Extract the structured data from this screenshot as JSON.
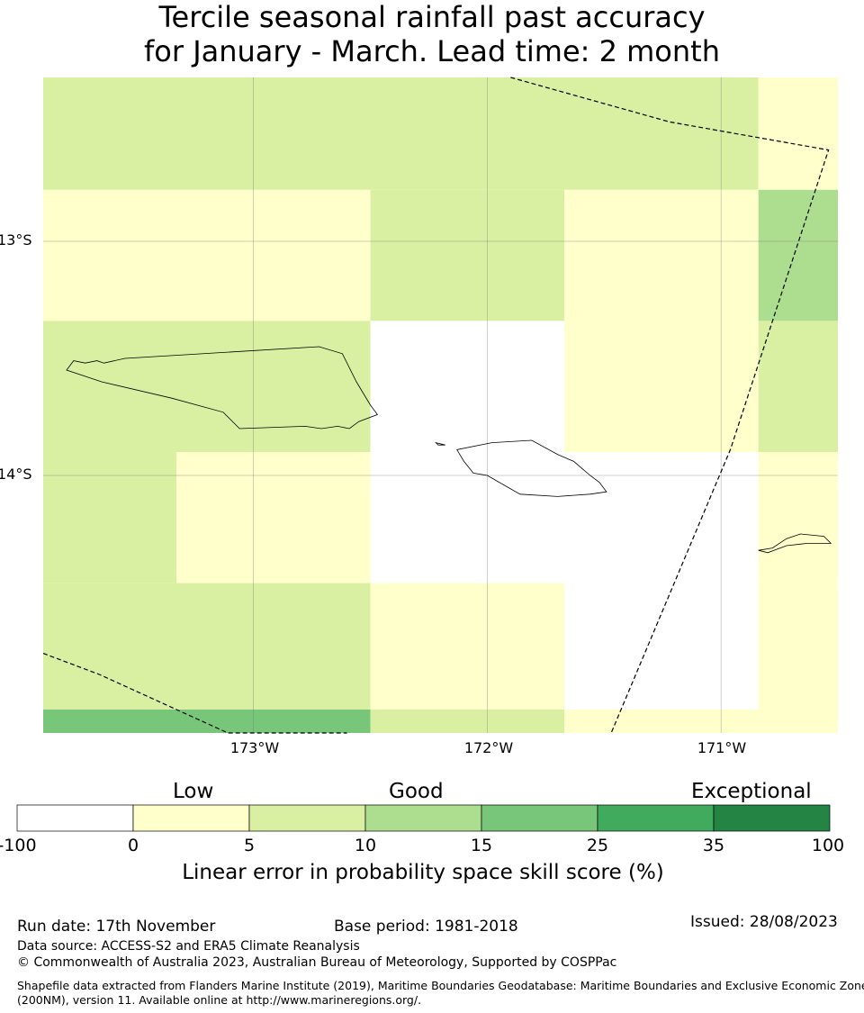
{
  "title": {
    "line1": "Tercile seasonal rainfall past accuracy",
    "line2": "for January - March. Lead time: 2 month"
  },
  "map": {
    "lat_labels": [
      "13°S",
      "14°S"
    ],
    "lon_labels": [
      "173°W",
      "172°W",
      "171°W"
    ],
    "extent": {
      "lon_min": -173.9,
      "lon_max": -170.5,
      "lat_min": -15.1,
      "lat_max": -12.3
    },
    "grid_cells": [
      {
        "lon0": -173.9,
        "lon1": -170.84,
        "lat0": -12.78,
        "lat1": -12.3,
        "bin": 2
      },
      {
        "lon0": -170.84,
        "lon1": -170.5,
        "lat0": -12.78,
        "lat1": -12.3,
        "bin": 1
      },
      {
        "lon0": -173.9,
        "lon1": -172.5,
        "lat0": -13.34,
        "lat1": -12.78,
        "bin": 1
      },
      {
        "lon0": -172.5,
        "lon1": -171.67,
        "lat0": -13.34,
        "lat1": -12.78,
        "bin": 2
      },
      {
        "lon0": -171.67,
        "lon1": -170.84,
        "lat0": -13.34,
        "lat1": -12.78,
        "bin": 1
      },
      {
        "lon0": -170.84,
        "lon1": -170.5,
        "lat0": -13.34,
        "lat1": -12.78,
        "bin": 3
      },
      {
        "lon0": -173.9,
        "lon1": -172.5,
        "lat0": -13.9,
        "lat1": -13.34,
        "bin": 2
      },
      {
        "lon0": -172.5,
        "lon1": -171.67,
        "lat0": -13.9,
        "lat1": -13.34,
        "bin": 0
      },
      {
        "lon0": -171.67,
        "lon1": -170.84,
        "lat0": -13.9,
        "lat1": -13.34,
        "bin": 1
      },
      {
        "lon0": -170.84,
        "lon1": -170.5,
        "lat0": -13.9,
        "lat1": -13.34,
        "bin": 2
      },
      {
        "lon0": -173.9,
        "lon1": -173.33,
        "lat0": -14.46,
        "lat1": -13.9,
        "bin": 2
      },
      {
        "lon0": -173.33,
        "lon1": -172.5,
        "lat0": -14.46,
        "lat1": -13.9,
        "bin": 1
      },
      {
        "lon0": -172.5,
        "lon1": -170.84,
        "lat0": -14.46,
        "lat1": -13.9,
        "bin": 0
      },
      {
        "lon0": -170.84,
        "lon1": -170.5,
        "lat0": -14.46,
        "lat1": -13.9,
        "bin": 1
      },
      {
        "lon0": -173.9,
        "lon1": -172.5,
        "lat0": -15.0,
        "lat1": -14.46,
        "bin": 2
      },
      {
        "lon0": -172.5,
        "lon1": -171.67,
        "lat0": -15.0,
        "lat1": -14.46,
        "bin": 1
      },
      {
        "lon0": -171.67,
        "lon1": -170.84,
        "lat0": -15.0,
        "lat1": -14.46,
        "bin": 0
      },
      {
        "lon0": -170.84,
        "lon1": -170.5,
        "lat0": -15.0,
        "lat1": -14.46,
        "bin": 1
      },
      {
        "lon0": -173.9,
        "lon1": -172.5,
        "lat0": -15.1,
        "lat1": -15.0,
        "bin": 4
      },
      {
        "lon0": -172.5,
        "lon1": -171.67,
        "lat0": -15.1,
        "lat1": -15.0,
        "bin": 2
      },
      {
        "lon0": -171.67,
        "lon1": -170.5,
        "lat0": -15.1,
        "lat1": -15.0,
        "bin": 1
      }
    ],
    "eez_boundaries": [
      [
        [
          -171.9,
          -12.3
        ],
        [
          -171.22,
          -12.49
        ],
        [
          -170.54,
          -12.61
        ],
        [
          -170.96,
          -13.89
        ],
        [
          -171.47,
          -15.1
        ]
      ],
      [
        [
          -173.9,
          -14.76
        ],
        [
          -173.66,
          -14.85
        ],
        [
          -173.11,
          -15.1
        ],
        [
          -172.6,
          -15.1
        ]
      ]
    ],
    "islands": [
      {
        "name": "Savai'i",
        "outline": [
          [
            -173.8,
            -13.55
          ],
          [
            -173.77,
            -13.51
          ],
          [
            -173.72,
            -13.52
          ],
          [
            -173.67,
            -13.51
          ],
          [
            -173.64,
            -13.52
          ],
          [
            -173.55,
            -13.5
          ],
          [
            -172.72,
            -13.45
          ],
          [
            -172.62,
            -13.48
          ],
          [
            -172.56,
            -13.6
          ],
          [
            -172.53,
            -13.65
          ],
          [
            -172.5,
            -13.7
          ],
          [
            -172.47,
            -13.74
          ],
          [
            -172.55,
            -13.77
          ],
          [
            -172.59,
            -13.8
          ],
          [
            -172.64,
            -13.79
          ],
          [
            -172.71,
            -13.8
          ],
          [
            -172.78,
            -13.79
          ],
          [
            -173.06,
            -13.8
          ],
          [
            -173.13,
            -13.73
          ],
          [
            -173.35,
            -13.67
          ],
          [
            -173.65,
            -13.6
          ],
          [
            -173.8,
            -13.55
          ]
        ]
      },
      {
        "name": "Apolima",
        "outline": [
          [
            -172.22,
            -13.86
          ],
          [
            -172.18,
            -13.87
          ],
          [
            -172.21,
            -13.87
          ],
          [
            -172.22,
            -13.86
          ]
        ]
      },
      {
        "name": "Upolu",
        "outline": [
          [
            -172.13,
            -13.89
          ],
          [
            -171.98,
            -13.86
          ],
          [
            -171.81,
            -13.85
          ],
          [
            -171.7,
            -13.91
          ],
          [
            -171.63,
            -13.94
          ],
          [
            -171.56,
            -14.0
          ],
          [
            -171.52,
            -14.03
          ],
          [
            -171.49,
            -14.07
          ],
          [
            -171.56,
            -14.08
          ],
          [
            -171.7,
            -14.09
          ],
          [
            -171.86,
            -14.08
          ],
          [
            -172.0,
            -14.0
          ],
          [
            -172.06,
            -13.99
          ],
          [
            -172.1,
            -13.94
          ],
          [
            -172.13,
            -13.89
          ]
        ]
      },
      {
        "name": "Tutuila",
        "outline": [
          [
            -170.84,
            -14.32
          ],
          [
            -170.78,
            -14.31
          ],
          [
            -170.72,
            -14.27
          ],
          [
            -170.66,
            -14.25
          ],
          [
            -170.56,
            -14.26
          ],
          [
            -170.53,
            -14.29
          ],
          [
            -170.63,
            -14.29
          ],
          [
            -170.72,
            -14.3
          ],
          [
            -170.8,
            -14.33
          ],
          [
            -170.84,
            -14.32
          ]
        ]
      }
    ]
  },
  "colorbar": {
    "categories": [
      "Low",
      "Good",
      "Exceptional"
    ],
    "tick_labels": [
      "-100",
      "0",
      "5",
      "10",
      "15",
      "25",
      "35",
      "100"
    ],
    "colors": [
      "#ffffff",
      "#ffffcc",
      "#d9f0a3",
      "#addd8e",
      "#78c679",
      "#41ab5d",
      "#238443"
    ],
    "title": "Linear error in probability space skill score (%)"
  },
  "footer": {
    "run_date": "Run date: 17th November",
    "base_period": "Base period: 1981-2018",
    "issued": "Issued: 28/08/2023",
    "data_source": "Data source: ACCESS-S2 and ERA5 Climate Reanalysis",
    "copyright": "© Commonwealth of Australia 2023, Australian Bureau of Meteorology, Supported by COSPPac",
    "shapefile_line1": "Shapefile data extracted from Flanders Marine Institute (2019), Maritime Boundaries Geodatabase: Maritime Boundaries and Exclusive Economic Zones",
    "shapefile_line2": "(200NM), version 11. Available online at http://www.marineregions.org/."
  }
}
